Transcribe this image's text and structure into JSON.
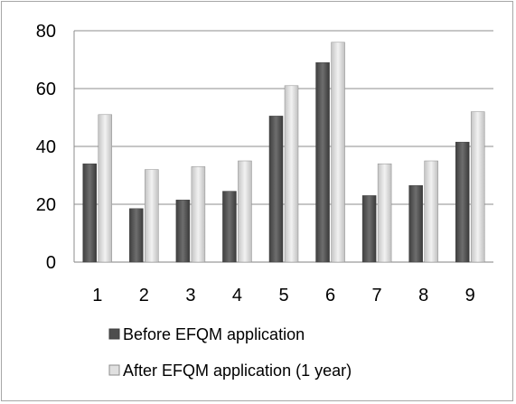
{
  "chart_data": {
    "type": "bar",
    "title": "",
    "xlabel": "",
    "ylabel": "",
    "categories": [
      "1",
      "2",
      "3",
      "4",
      "5",
      "6",
      "7",
      "8",
      "9"
    ],
    "ylim": [
      0,
      80
    ],
    "yticks": [
      0,
      20,
      40,
      60,
      80
    ],
    "grid": true,
    "legend_position": "bottom",
    "series": [
      {
        "name": "Before EFQM application",
        "color": "#595959",
        "values": [
          34,
          18.5,
          21.5,
          24.5,
          50.5,
          69,
          23,
          26.5,
          41.5
        ]
      },
      {
        "name": "After EFQM application (1 year)",
        "color": "#d9d9d9",
        "values": [
          51,
          32,
          33,
          35,
          61,
          76,
          34,
          35,
          52
        ]
      }
    ]
  }
}
